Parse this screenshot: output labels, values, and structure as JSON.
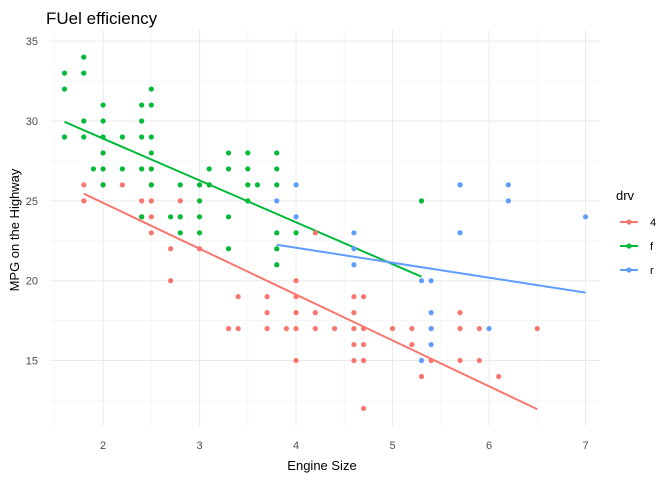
{
  "chart_data": {
    "type": "scatter",
    "title": "FUel efficiency",
    "xlabel": "Engine Size",
    "ylabel": "MPG on the Highway",
    "xlim": [
      1.45,
      7.15
    ],
    "ylim": [
      10.9,
      35.7
    ],
    "x_ticks": [
      2,
      3,
      4,
      5,
      6,
      7
    ],
    "y_ticks": [
      15,
      20,
      25,
      30,
      35
    ],
    "grid": true,
    "legend": {
      "title": "drv",
      "position": "right"
    },
    "series": [
      {
        "name": "4",
        "color": "#F8766D",
        "points": [
          [
            1.8,
            26
          ],
          [
            1.8,
            25
          ],
          [
            2.0,
            28
          ],
          [
            2.0,
            27
          ],
          [
            2.0,
            26
          ],
          [
            2.2,
            26
          ],
          [
            2.4,
            27
          ],
          [
            2.4,
            25
          ],
          [
            2.4,
            24
          ],
          [
            2.5,
            26
          ],
          [
            2.5,
            25
          ],
          [
            2.5,
            24
          ],
          [
            2.5,
            23
          ],
          [
            2.5,
            27
          ],
          [
            2.7,
            22
          ],
          [
            2.7,
            20
          ],
          [
            2.8,
            25
          ],
          [
            2.8,
            24
          ],
          [
            3.0,
            22
          ],
          [
            3.1,
            26
          ],
          [
            3.3,
            17
          ],
          [
            3.4,
            19
          ],
          [
            3.4,
            17
          ],
          [
            3.7,
            19
          ],
          [
            3.7,
            18
          ],
          [
            3.7,
            17
          ],
          [
            3.9,
            17
          ],
          [
            4.0,
            20
          ],
          [
            4.0,
            19
          ],
          [
            4.0,
            18
          ],
          [
            4.0,
            17
          ],
          [
            4.0,
            15
          ],
          [
            4.2,
            18
          ],
          [
            4.2,
            17
          ],
          [
            4.2,
            23
          ],
          [
            4.4,
            17
          ],
          [
            4.6,
            19
          ],
          [
            4.6,
            18
          ],
          [
            4.6,
            17
          ],
          [
            4.6,
            16
          ],
          [
            4.6,
            15
          ],
          [
            4.7,
            19
          ],
          [
            4.7,
            17
          ],
          [
            4.7,
            16
          ],
          [
            4.7,
            15
          ],
          [
            4.7,
            12
          ],
          [
            5.0,
            17
          ],
          [
            5.2,
            17
          ],
          [
            5.2,
            16
          ],
          [
            5.3,
            15
          ],
          [
            5.3,
            14
          ],
          [
            5.4,
            17
          ],
          [
            5.4,
            15
          ],
          [
            5.7,
            18
          ],
          [
            5.7,
            17
          ],
          [
            5.7,
            15
          ],
          [
            5.9,
            17
          ],
          [
            5.9,
            15
          ],
          [
            6.1,
            14
          ],
          [
            6.5,
            17
          ]
        ],
        "trend": [
          [
            1.8,
            25.45
          ],
          [
            6.5,
            11.95
          ]
        ]
      },
      {
        "name": "f",
        "color": "#00BA38",
        "points": [
          [
            1.6,
            33
          ],
          [
            1.6,
            32
          ],
          [
            1.6,
            29
          ],
          [
            1.8,
            34
          ],
          [
            1.8,
            33
          ],
          [
            1.8,
            30
          ],
          [
            1.8,
            29
          ],
          [
            1.9,
            27
          ],
          [
            2.0,
            31
          ],
          [
            2.0,
            30
          ],
          [
            2.0,
            29
          ],
          [
            2.0,
            28
          ],
          [
            2.0,
            27
          ],
          [
            2.0,
            26
          ],
          [
            2.2,
            29
          ],
          [
            2.2,
            27
          ],
          [
            2.4,
            31
          ],
          [
            2.4,
            30
          ],
          [
            2.4,
            29
          ],
          [
            2.4,
            27
          ],
          [
            2.4,
            24
          ],
          [
            2.5,
            32
          ],
          [
            2.5,
            31
          ],
          [
            2.5,
            29
          ],
          [
            2.5,
            28
          ],
          [
            2.5,
            27
          ],
          [
            2.5,
            26
          ],
          [
            2.7,
            24
          ],
          [
            2.8,
            26
          ],
          [
            2.8,
            24
          ],
          [
            2.8,
            23
          ],
          [
            3.0,
            26
          ],
          [
            3.0,
            25
          ],
          [
            3.0,
            24
          ],
          [
            3.0,
            23
          ],
          [
            3.1,
            27
          ],
          [
            3.1,
            26
          ],
          [
            3.3,
            28
          ],
          [
            3.3,
            27
          ],
          [
            3.3,
            24
          ],
          [
            3.3,
            22
          ],
          [
            3.5,
            28
          ],
          [
            3.5,
            27
          ],
          [
            3.5,
            26
          ],
          [
            3.5,
            25
          ],
          [
            3.6,
            26
          ],
          [
            3.8,
            28
          ],
          [
            3.8,
            27
          ],
          [
            3.8,
            26
          ],
          [
            3.8,
            23
          ],
          [
            3.8,
            22
          ],
          [
            3.8,
            21
          ],
          [
            4.0,
            23
          ],
          [
            5.3,
            25
          ]
        ],
        "trend": [
          [
            1.6,
            29.95
          ],
          [
            5.3,
            20.25
          ]
        ]
      },
      {
        "name": "r",
        "color": "#619CFF",
        "points": [
          [
            3.8,
            25
          ],
          [
            4.0,
            26
          ],
          [
            4.0,
            24
          ],
          [
            4.6,
            23
          ],
          [
            4.6,
            22
          ],
          [
            4.6,
            21
          ],
          [
            5.3,
            20
          ],
          [
            5.4,
            20
          ],
          [
            5.4,
            18
          ],
          [
            5.4,
            17
          ],
          [
            5.4,
            16
          ],
          [
            5.3,
            15
          ],
          [
            5.7,
            26
          ],
          [
            5.7,
            23
          ],
          [
            6.0,
            17
          ],
          [
            6.2,
            26
          ],
          [
            6.2,
            25
          ],
          [
            7.0,
            24
          ]
        ],
        "trend": [
          [
            3.8,
            22.25
          ],
          [
            7.0,
            19.25
          ]
        ]
      }
    ]
  }
}
